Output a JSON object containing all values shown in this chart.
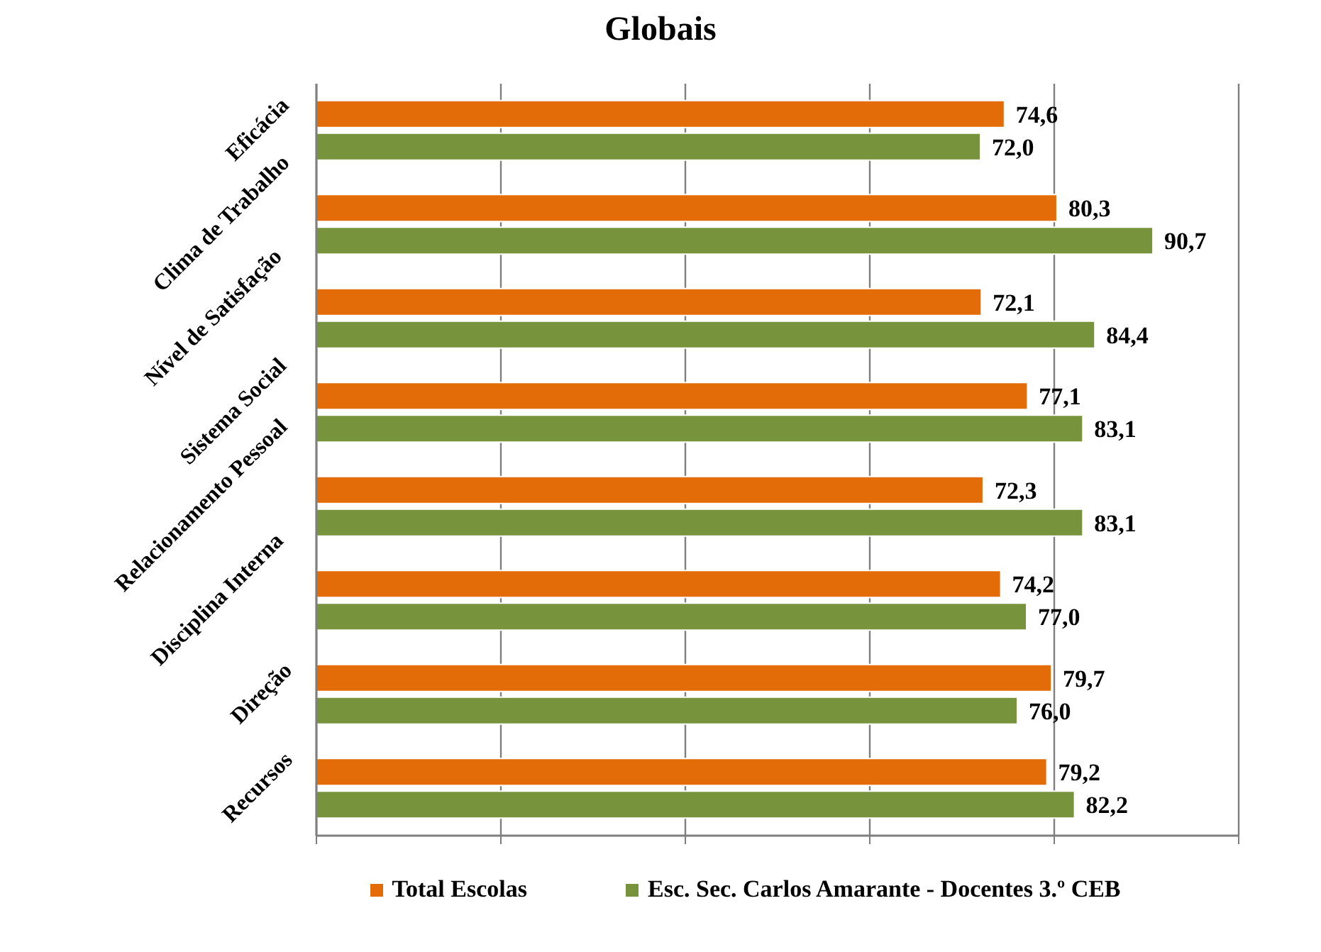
{
  "chart_data": {
    "type": "bar",
    "orientation": "horizontal",
    "title": "Globais",
    "categories": [
      "Eficácia",
      "Clima de Trabalho",
      "Nível de Satisfação",
      "Sistema Social",
      "Relacionamento Pessoal",
      "Disciplina Interna",
      "Direção",
      "Recursos"
    ],
    "series": [
      {
        "name": "Total Escolas",
        "color": "#e36c09",
        "values": [
          74.6,
          80.3,
          72.1,
          77.1,
          72.3,
          74.2,
          79.7,
          79.2
        ],
        "value_labels": [
          "74,6",
          "80,3",
          "72,1",
          "77,1",
          "72,3",
          "74,2",
          "79,7",
          "79,2"
        ]
      },
      {
        "name": "Esc. Sec. Carlos Amarante - Docentes 3.º CEB",
        "color": "#77933c",
        "values": [
          72.0,
          90.7,
          84.4,
          83.1,
          83.1,
          77.0,
          76.0,
          82.2
        ],
        "value_labels": [
          "72,0",
          "90,7",
          "84,4",
          "83,1",
          "83,1",
          "77,0",
          "76,0",
          "82,2"
        ]
      }
    ],
    "tick_labels": "y",
    "grid": "x",
    "legend": "bottom"
  }
}
